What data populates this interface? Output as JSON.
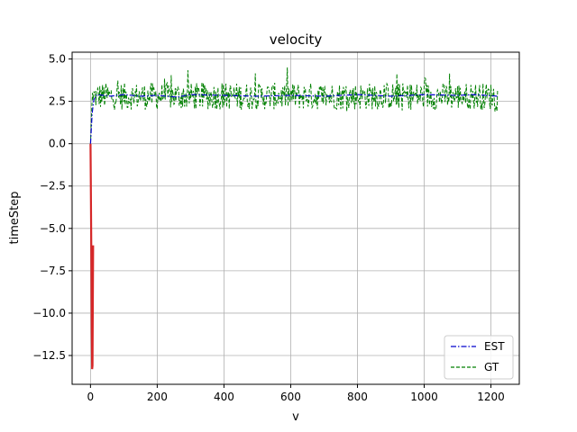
{
  "chart_data": {
    "type": "line",
    "title": "velocity",
    "xlabel": "v",
    "ylabel": "timeStep",
    "xlim": [
      -55,
      1285
    ],
    "ylim": [
      -14.2,
      5.4
    ],
    "xticks": [
      0,
      200,
      400,
      600,
      800,
      1000,
      1200
    ],
    "xtick_labels": [
      "0",
      "200",
      "400",
      "600",
      "800",
      "1000",
      "1200"
    ],
    "yticks": [
      5.0,
      2.5,
      0.0,
      -2.5,
      -5.0,
      -7.5,
      -10.0,
      -12.5
    ],
    "ytick_labels": [
      "5.0",
      "2.5",
      "0.0",
      "−2.5",
      "−5.0",
      "−7.5",
      "−10.0",
      "−12.5"
    ],
    "grid": true,
    "legend_position": "lower-right",
    "series": [
      {
        "name": "EST",
        "color": "#0000cc",
        "style": "dashdot",
        "x": [
          0,
          5,
          10,
          20,
          40,
          60,
          100,
          150,
          200,
          260,
          300,
          400,
          500,
          600,
          700,
          800,
          900,
          1000,
          1100,
          1150,
          1220
        ],
        "y": [
          0.0,
          1.8,
          2.6,
          2.9,
          2.85,
          2.8,
          2.9,
          2.8,
          2.85,
          2.75,
          2.9,
          2.85,
          2.8,
          2.85,
          2.8,
          2.9,
          2.8,
          2.9,
          2.85,
          2.9,
          2.8
        ]
      },
      {
        "name": "GT",
        "color": "#008000",
        "style": "dashed",
        "x_start": 0,
        "x_end": 1220,
        "baseline": 2.8,
        "y_head": [
          0.0,
          1.0,
          2.2,
          3.0,
          2.6
        ],
        "y_max": 4.5,
        "y_min": 1.9
      },
      {
        "name": "",
        "color": "#d62728",
        "style": "solid",
        "x": [
          0,
          1,
          2,
          3,
          4,
          5,
          6,
          7,
          8
        ],
        "y": [
          0.0,
          -2.0,
          -5.0,
          -8.0,
          -11.0,
          -13.3,
          -13.1,
          -10.0,
          -6.0
        ]
      }
    ]
  }
}
